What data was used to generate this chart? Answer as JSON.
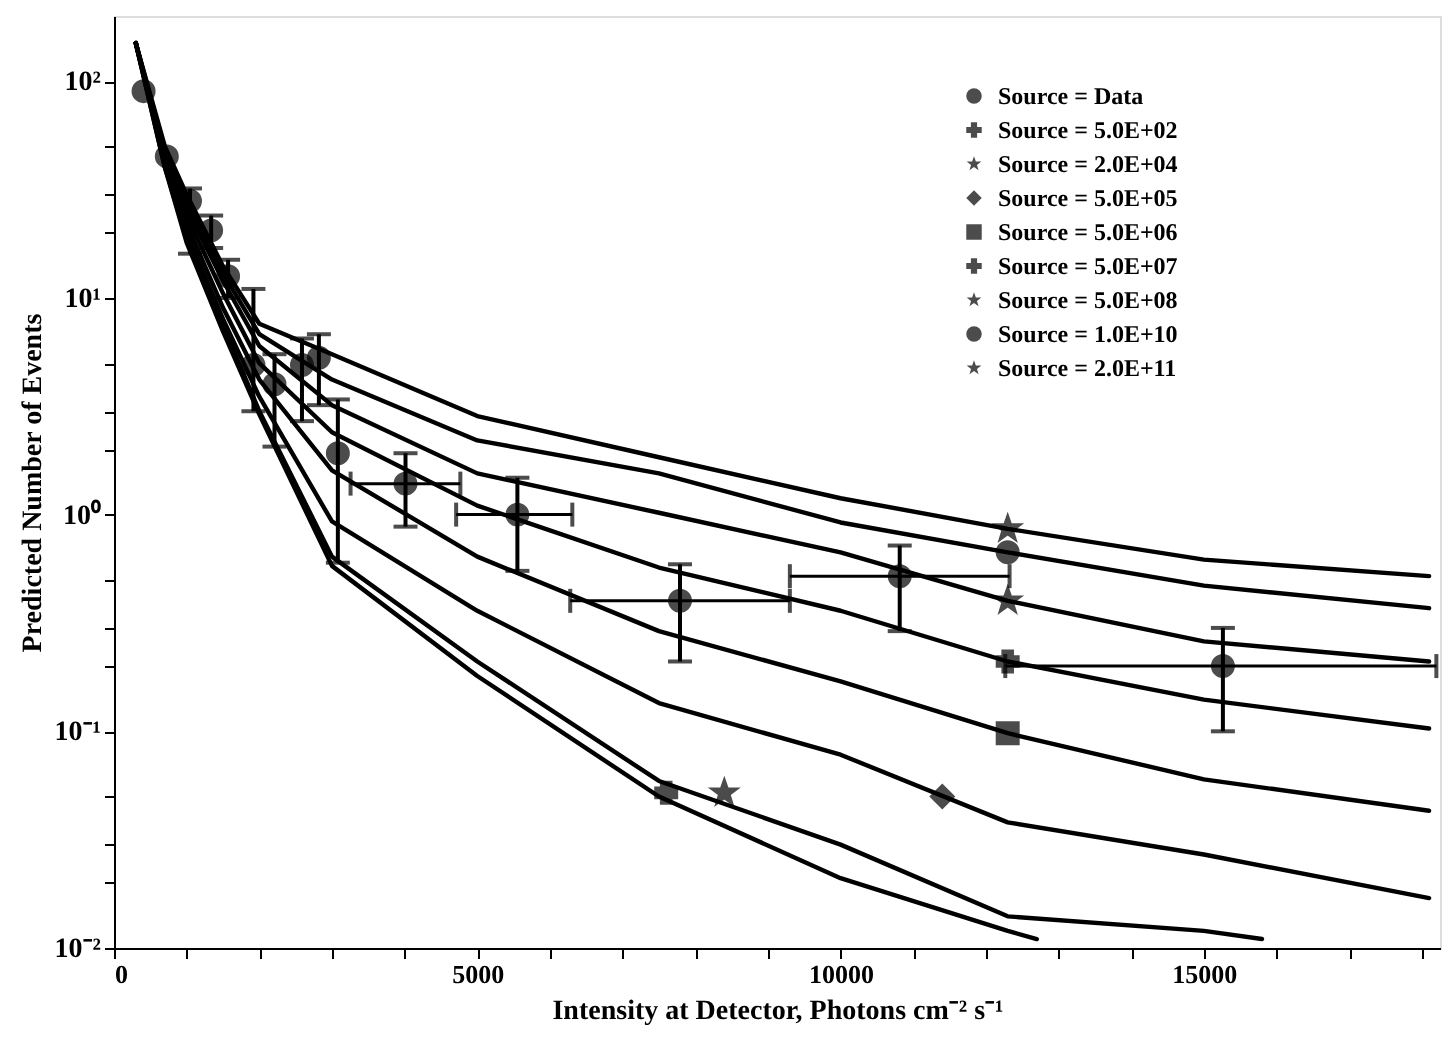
{
  "chart_data": {
    "type": "line",
    "xlabel": "Intensity at Detector, Photons cm⁻² s⁻¹",
    "ylabel": "Predicted Number of Events",
    "log": "y",
    "grid": false,
    "legend": "top right",
    "xlim": [
      0,
      18250
    ],
    "xticks": [
      0,
      {
        "value": 1000,
        "label": null
      },
      {
        "value": 2000,
        "label": null
      },
      {
        "value": 3000,
        "label": null
      },
      {
        "value": 4000,
        "label": null
      },
      5000,
      {
        "value": 6000,
        "label": null
      },
      {
        "value": 7000,
        "label": null
      },
      {
        "value": 8000,
        "label": null
      },
      {
        "value": 9000,
        "label": null
      },
      10000,
      {
        "value": 11000,
        "label": null
      },
      {
        "value": 12000,
        "label": null
      },
      {
        "value": 13000,
        "label": null
      },
      {
        "value": 14000,
        "label": null
      },
      15000,
      {
        "value": 16000,
        "label": null
      },
      {
        "value": 17000,
        "label": null
      },
      {
        "value": 18000,
        "label": null
      }
    ],
    "ylim": [
      0.01,
      200
    ],
    "yticks": [
      {
        "value": 0.01,
        "label": "10⁻²"
      },
      {
        "value": 0.02,
        "label": null
      },
      {
        "value": 0.03,
        "label": null
      },
      {
        "value": 0.05,
        "label": null
      },
      {
        "value": 0.1,
        "label": "10⁻¹"
      },
      {
        "value": 0.2,
        "label": null
      },
      {
        "value": 0.3,
        "label": null
      },
      {
        "value": 0.5,
        "label": null
      },
      {
        "value": 1,
        "label": "10⁰"
      },
      {
        "value": 2,
        "label": null
      },
      {
        "value": 3,
        "label": null
      },
      {
        "value": 5,
        "label": null
      },
      {
        "value": 10,
        "label": "10¹"
      },
      {
        "value": 20,
        "label": null
      },
      {
        "value": 30,
        "label": null
      },
      {
        "value": 50,
        "label": null
      },
      {
        "value": 100,
        "label": "10²"
      }
    ],
    "series": [
      {
        "color": "#000000",
        "x": [
          300,
          700,
          1000,
          1500,
          2000,
          3000,
          5000,
          7500,
          10000,
          12300,
          15000,
          18100
        ],
        "values": [
          150,
          50,
          30,
          14,
          7.6,
          5.5,
          2.85,
          1.84,
          1.19,
          0.86,
          0.62,
          0.52
        ]
      },
      {
        "color": "#000000",
        "x": [
          300,
          700,
          1000,
          1500,
          2000,
          3000,
          5000,
          7500,
          10000,
          12300,
          15000,
          18100
        ],
        "values": [
          150,
          48,
          28,
          13,
          6.8,
          4.2,
          2.2,
          1.55,
          0.92,
          0.67,
          0.47,
          0.37
        ]
      },
      {
        "color": "#000000",
        "x": [
          300,
          700,
          1000,
          1500,
          2000,
          3000,
          5000,
          7500,
          10000,
          12300,
          15000,
          18100
        ],
        "values": [
          150,
          46,
          26,
          12,
          6,
          3.2,
          1.55,
          1.02,
          0.67,
          0.4,
          0.26,
          0.21
        ]
      },
      {
        "color": "#000000",
        "x": [
          300,
          700,
          1000,
          1500,
          2000,
          3000,
          5000,
          7500,
          10000,
          12300,
          15000,
          18100
        ],
        "values": [
          150,
          45,
          24,
          10.5,
          5,
          2.4,
          1.1,
          0.57,
          0.36,
          0.21,
          0.14,
          0.103
        ]
      },
      {
        "color": "#000000",
        "x": [
          300,
          700,
          1000,
          1500,
          2000,
          3000,
          5000,
          7500,
          10000,
          12300,
          15000,
          18100
        ],
        "values": [
          150,
          43,
          22,
          9,
          4.2,
          1.6,
          0.64,
          0.29,
          0.17,
          0.098,
          0.06,
          0.043
        ]
      },
      {
        "color": "#000000",
        "x": [
          300,
          700,
          1000,
          1500,
          2000,
          3000,
          5000,
          7500,
          10000,
          12300,
          15000,
          18100
        ],
        "values": [
          150,
          42,
          20,
          8,
          3.5,
          0.93,
          0.36,
          0.135,
          0.078,
          0.038,
          0.027,
          0.017
        ]
      },
      {
        "color": "#000000",
        "x": [
          300,
          700,
          1000,
          1500,
          2000,
          3000,
          5000,
          7500,
          10000,
          12300,
          15000,
          15800
        ],
        "values": [
          150,
          40,
          19,
          7.5,
          3,
          0.64,
          0.21,
          0.059,
          0.03,
          0.014,
          0.012,
          0.011
        ]
      },
      {
        "color": "#000000",
        "x": [
          300,
          700,
          1000,
          1500,
          2000,
          3000,
          5000,
          7500,
          10000,
          12300,
          12700
        ],
        "values": [
          150,
          40,
          18,
          7,
          2.9,
          0.58,
          0.18,
          0.05,
          0.021,
          0.012,
          0.011
        ]
      },
      {
        "type": "scatter",
        "name": "Source = Data",
        "color": "#000000",
        "marker": "circle",
        "x": [
          407,
          727,
          1046,
          1337,
          1570,
          1919,
          2209,
          2587,
          2820,
          3081,
          4012,
          5552,
          7790,
          10814,
          15262
        ],
        "values": [
          90,
          45,
          28,
          20.5,
          12.6,
          4.9,
          4.0,
          4.9,
          5.3,
          1.92,
          1.39,
          1.0,
          0.4,
          0.52,
          0.2
        ],
        "errors": [
          null,
          null,
          [
            16,
            32
          ],
          [
            17,
            24
          ],
          [
            10,
            15
          ],
          [
            3,
            11
          ],
          [
            2.06,
            5.5
          ],
          [
            2.7,
            6.5
          ],
          [
            3.2,
            6.8
          ],
          [
            0.6,
            3.4
          ],
          [
            0.88,
            1.92
          ],
          [
            0.55,
            1.48
          ],
          [
            0.21,
            0.59
          ],
          [
            0.29,
            0.72
          ],
          [
            0.1,
            0.3
          ]
        ],
        "xerrors": [
          null,
          null,
          null,
          null,
          null,
          null,
          null,
          null,
          null,
          null,
          [
            3256,
            4767
          ],
          [
            4709,
            6308
          ],
          [
            6279,
            9302
          ],
          [
            9302,
            12326
          ],
          [
            12267,
            18200
          ]
        ]
      },
      {
        "type": "scatter",
        "name": "Source = 5.0E+02",
        "color": "#000000",
        "marker": "cross",
        "x": [
          7600
        ],
        "values": [
          0.052
        ]
      },
      {
        "type": "scatter",
        "name": "Source = 2.0E+04",
        "color": "#000000",
        "marker": "star",
        "x": [
          8400
        ],
        "values": [
          0.052
        ]
      },
      {
        "type": "scatter",
        "name": "Source = 5.0E+05",
        "color": "#000000",
        "marker": "diamond",
        "x": [
          11400
        ],
        "values": [
          0.05
        ]
      },
      {
        "type": "scatter",
        "name": "Source = 5.0E+06",
        "color": "#000000",
        "marker": "square",
        "x": [
          12300
        ],
        "values": [
          0.098
        ]
      },
      {
        "type": "scatter",
        "name": "Source = 5.0E+07",
        "color": "#000000",
        "marker": "cross",
        "x": [
          12300
        ],
        "values": [
          0.21
        ]
      },
      {
        "type": "scatter",
        "name": "Source = 5.0E+08",
        "color": "#000000",
        "marker": "star",
        "x": [
          12300
        ],
        "values": [
          0.4
        ]
      },
      {
        "type": "scatter",
        "name": "Source = 1.0E+10",
        "color": "#000000",
        "marker": "circle",
        "x": [
          12300
        ],
        "values": [
          0.67
        ]
      },
      {
        "type": "scatter",
        "name": "Source = 2.0E+11",
        "color": "#000000",
        "marker": "star",
        "x": [
          12300
        ],
        "values": [
          0.86
        ]
      }
    ]
  }
}
